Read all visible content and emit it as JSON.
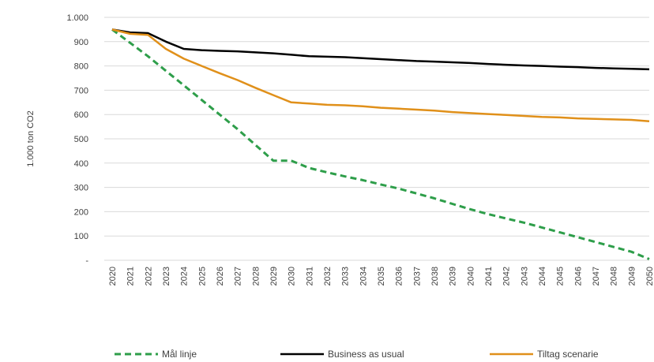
{
  "chart_data": {
    "type": "line",
    "title": "",
    "xlabel": "",
    "ylabel": "1.000 ton CO2",
    "ylim": [
      0,
      1000
    ],
    "y_ticks": [
      "-",
      "100",
      "200",
      "300",
      "400",
      "500",
      "600",
      "700",
      "800",
      "900",
      "1.000"
    ],
    "y_tick_values": [
      0,
      100,
      200,
      300,
      400,
      500,
      600,
      700,
      800,
      900,
      1000
    ],
    "x": [
      "2020",
      "2021",
      "2022",
      "2023",
      "2024",
      "2025",
      "2026",
      "2027",
      "2028",
      "2029",
      "2030",
      "2031",
      "2032",
      "2033",
      "2034",
      "2035",
      "2036",
      "2037",
      "2038",
      "2039",
      "2040",
      "2041",
      "2042",
      "2043",
      "2044",
      "2045",
      "2046",
      "2047",
      "2048",
      "2049",
      "2050"
    ],
    "grid": "horizontal",
    "legend_position": "bottom",
    "series": [
      {
        "name": "Mål linje",
        "color": "#2e9e4a",
        "dash": "dashed",
        "values": [
          950,
          895,
          840,
          780,
          720,
          660,
          600,
          540,
          475,
          410,
          410,
          380,
          362,
          345,
          330,
          312,
          295,
          275,
          255,
          232,
          210,
          190,
          172,
          155,
          135,
          115,
          95,
          75,
          55,
          35,
          5
        ]
      },
      {
        "name": "Business as usual",
        "color": "#000000",
        "dash": "solid",
        "values": [
          950,
          938,
          935,
          900,
          870,
          865,
          862,
          860,
          856,
          852,
          846,
          840,
          838,
          836,
          832,
          828,
          824,
          820,
          818,
          815,
          812,
          808,
          805,
          802,
          800,
          797,
          795,
          792,
          790,
          788,
          786
        ]
      },
      {
        "name": "Tiltag scenarie",
        "color": "#e0901a",
        "dash": "solid",
        "values": [
          950,
          932,
          928,
          870,
          830,
          800,
          770,
          742,
          710,
          680,
          650,
          645,
          640,
          638,
          634,
          628,
          624,
          620,
          616,
          610,
          606,
          602,
          598,
          594,
          590,
          588,
          584,
          582,
          580,
          578,
          572
        ]
      }
    ]
  }
}
